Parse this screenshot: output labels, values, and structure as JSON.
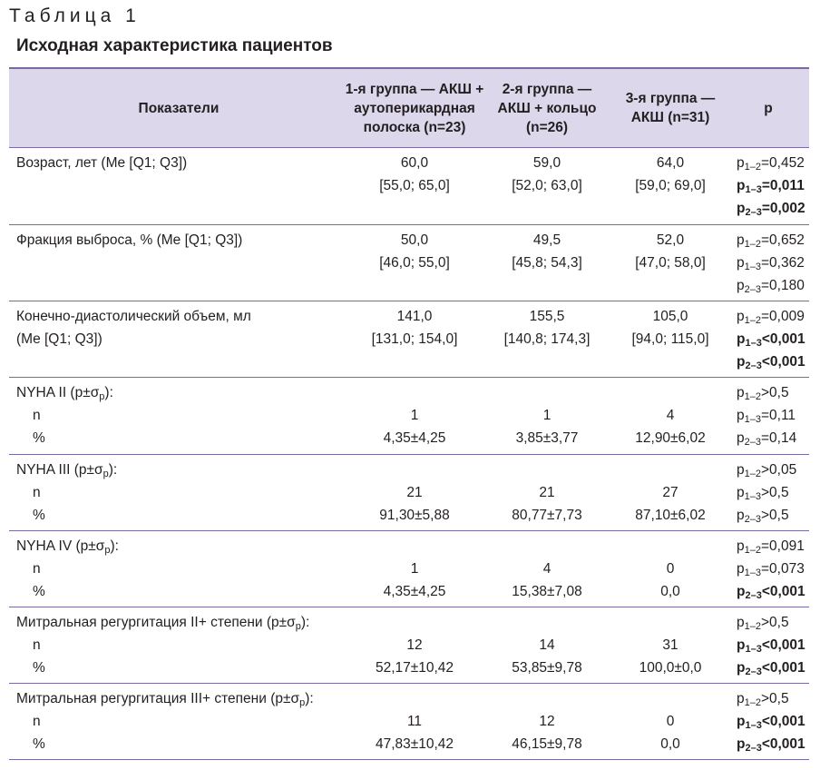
{
  "caption": {
    "label": "Таблица 1",
    "title": "Исходная характеристика пациентов"
  },
  "header": {
    "col0": "Показатели",
    "col1": [
      "1-я группа — АКШ +",
      "аутоперикардная",
      "полоска (n=23)"
    ],
    "col2": [
      "2-я группа —",
      "АКШ + кольцо",
      "(n=26)"
    ],
    "col3": [
      "3-я группа —",
      "АКШ (n=31)"
    ],
    "col4": "p"
  },
  "rows": [
    {
      "label": [
        "Возраст, лет (Me [Q1; Q3])"
      ],
      "g1": [
        "60,0",
        "[55,0; 65,0]"
      ],
      "g2": [
        "59,0",
        "[52,0; 63,0]"
      ],
      "g3": [
        "64,0",
        "[59,0; 69,0]"
      ],
      "p": [
        {
          "pre": "p",
          "sub": "1–2",
          "val": "=0,452",
          "bold": false
        },
        {
          "pre": "p",
          "sub": "1–3",
          "val": "=0,011",
          "bold": true
        },
        {
          "pre": "p",
          "sub": "2–3",
          "val": "=0,002",
          "bold": true
        }
      ]
    },
    {
      "label": [
        "Фракция выброса, % (Me [Q1; Q3])"
      ],
      "g1": [
        "50,0",
        "[46,0; 55,0]"
      ],
      "g2": [
        "49,5",
        "[45,8; 54,3]"
      ],
      "g3": [
        "52,0",
        "[47,0; 58,0]"
      ],
      "p": [
        {
          "pre": "p",
          "sub": "1–2",
          "val": "=0,652",
          "bold": false
        },
        {
          "pre": "p",
          "sub": "1–3",
          "val": "=0,362",
          "bold": false
        },
        {
          "pre": "p",
          "sub": "2–3",
          "val": "=0,180",
          "bold": false
        }
      ]
    },
    {
      "label": [
        "Конечно-диастолический объем, мл",
        "(Me [Q1; Q3])"
      ],
      "g1": [
        "141,0",
        "[131,0; 154,0]"
      ],
      "g2": [
        "155,5",
        "[140,8; 174,3]"
      ],
      "g3": [
        "105,0",
        "[94,0; 115,0]"
      ],
      "p": [
        {
          "pre": "p",
          "sub": "1–2",
          "val": "=0,009",
          "bold": false
        },
        {
          "pre": "p",
          "sub": "1–3",
          "val": "<0,001",
          "bold": true
        },
        {
          "pre": "p",
          "sub": "2–3",
          "val": "<0,001",
          "bold": true
        }
      ]
    },
    {
      "label_main": "NYHA II (p±σ",
      "label_sub": "p",
      "label_tail": "):",
      "sub_rows": [
        "n",
        "%"
      ],
      "g1": [
        "1",
        "4,35±4,25"
      ],
      "g2": [
        "1",
        "3,85±3,77"
      ],
      "g3": [
        "4",
        "12,90±6,02"
      ],
      "p": [
        {
          "pre": "p",
          "sub": "1–2",
          "val": ">0,5",
          "bold": false
        },
        {
          "pre": "p",
          "sub": "1–3",
          "val": "=0,11",
          "bold": false
        },
        {
          "pre": "p",
          "sub": "2–3",
          "val": "=0,14",
          "bold": false
        }
      ]
    },
    {
      "label_main": "NYHA III (p±σ",
      "label_sub": "p",
      "label_tail": "):",
      "sub_rows": [
        "n",
        "%"
      ],
      "g1": [
        "21",
        "91,30±5,88"
      ],
      "g2": [
        "21",
        "80,77±7,73"
      ],
      "g3": [
        "27",
        "87,10±6,02"
      ],
      "p": [
        {
          "pre": "p",
          "sub": "1–2",
          "val": ">0,05",
          "bold": false
        },
        {
          "pre": "p",
          "sub": "1–3",
          "val": ">0,5",
          "bold": false
        },
        {
          "pre": "p",
          "sub": "2–3",
          "val": ">0,5",
          "bold": false
        }
      ]
    },
    {
      "label_main": "NYHA IV (p±σ",
      "label_sub": "p",
      "label_tail": "):",
      "sub_rows": [
        "n",
        "%"
      ],
      "g1": [
        "1",
        "4,35±4,25"
      ],
      "g2": [
        "4",
        "15,38±7,08"
      ],
      "g3": [
        "0",
        "0,0"
      ],
      "p": [
        {
          "pre": "p",
          "sub": "1–2",
          "val": "=0,091",
          "bold": false
        },
        {
          "pre": "p",
          "sub": "1–3",
          "val": "=0,073",
          "bold": false
        },
        {
          "pre": "p",
          "sub": "2–3",
          "val": "<0,001",
          "bold": true
        }
      ]
    },
    {
      "label_main": "Митральная регургитация II+ степени (p±σ",
      "label_sub": "p",
      "label_tail": "):",
      "sub_rows": [
        "n",
        "%"
      ],
      "g1": [
        "12",
        "52,17±10,42"
      ],
      "g2": [
        "14",
        "53,85±9,78"
      ],
      "g3": [
        "31",
        "100,0±0,0"
      ],
      "p": [
        {
          "pre": "p",
          "sub": "1–2",
          "val": ">0,5",
          "bold": false
        },
        {
          "pre": "p",
          "sub": "1–3",
          "val": "<0,001",
          "bold": true
        },
        {
          "pre": "p",
          "sub": "2–3",
          "val": "<0,001",
          "bold": true
        }
      ]
    },
    {
      "label_main": "Митральная регургитация III+ степени (p±σ",
      "label_sub": "p",
      "label_tail": "):",
      "sub_rows": [
        "n",
        "%"
      ],
      "g1": [
        "11",
        "47,83±10,42"
      ],
      "g2": [
        "12",
        "46,15±9,78"
      ],
      "g3": [
        "0",
        "0,0"
      ],
      "p": [
        {
          "pre": "p",
          "sub": "1–2",
          "val": ">0,5",
          "bold": false
        },
        {
          "pre": "p",
          "sub": "1–3",
          "val": "<0,001",
          "bold": true
        },
        {
          "pre": "p",
          "sub": "2–3",
          "val": "<0,001",
          "bold": true
        }
      ]
    }
  ]
}
